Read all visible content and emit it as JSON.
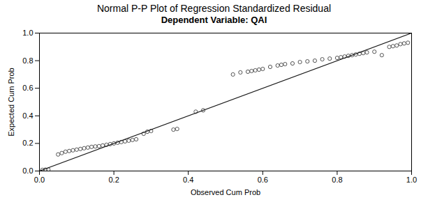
{
  "chart_data": {
    "type": "scatter",
    "title": "Normal P-P Plot of Regression Standardized Residual",
    "subtitle": "Dependent Variable: QAI",
    "xlabel": "Observed Cum Prob",
    "ylabel": "Expected Cum Prob",
    "xlim": [
      0.0,
      1.0
    ],
    "ylim": [
      0.0,
      1.0
    ],
    "xticks": [
      {
        "value": 0.0,
        "label": "0.0"
      },
      0.2,
      0.4,
      0.6,
      0.8,
      {
        "value": 1.0,
        "label": "1.0"
      }
    ],
    "yticks": [
      {
        "value": 0.0,
        "label": "0.0"
      },
      0.2,
      0.4,
      0.6,
      0.8,
      {
        "value": 1.0,
        "label": "1.0"
      }
    ],
    "series": [
      {
        "type": "scatter",
        "color": "#555555",
        "marker": "circle",
        "x": [
          0.008,
          0.016,
          0.024,
          0.05,
          0.06,
          0.07,
          0.08,
          0.09,
          0.1,
          0.11,
          0.12,
          0.13,
          0.14,
          0.15,
          0.16,
          0.17,
          0.18,
          0.19,
          0.2,
          0.21,
          0.22,
          0.23,
          0.24,
          0.25,
          0.26,
          0.28,
          0.29,
          0.3,
          0.36,
          0.37,
          0.42,
          0.44,
          0.52,
          0.54,
          0.56,
          0.57,
          0.58,
          0.59,
          0.6,
          0.62,
          0.64,
          0.65,
          0.66,
          0.68,
          0.7,
          0.72,
          0.74,
          0.76,
          0.78,
          0.8,
          0.81,
          0.82,
          0.83,
          0.84,
          0.85,
          0.86,
          0.87,
          0.88,
          0.9,
          0.92,
          0.94,
          0.95,
          0.96,
          0.97,
          0.98,
          0.99
        ],
        "values": [
          0.008,
          0.01,
          0.01,
          0.12,
          0.13,
          0.14,
          0.145,
          0.15,
          0.155,
          0.16,
          0.165,
          0.17,
          0.175,
          0.178,
          0.18,
          0.185,
          0.19,
          0.195,
          0.2,
          0.205,
          0.21,
          0.215,
          0.22,
          0.225,
          0.23,
          0.27,
          0.285,
          0.29,
          0.3,
          0.305,
          0.43,
          0.44,
          0.7,
          0.715,
          0.72,
          0.725,
          0.73,
          0.735,
          0.74,
          0.755,
          0.765,
          0.77,
          0.775,
          0.78,
          0.79,
          0.795,
          0.8,
          0.81,
          0.815,
          0.82,
          0.825,
          0.83,
          0.835,
          0.84,
          0.845,
          0.85,
          0.855,
          0.86,
          0.865,
          0.84,
          0.9,
          0.905,
          0.91,
          0.92,
          0.925,
          0.93
        ]
      },
      {
        "type": "line",
        "color": "#1a1a1a",
        "line_style": "solid",
        "x": [
          0,
          1
        ],
        "values": [
          0,
          1
        ]
      }
    ]
  }
}
